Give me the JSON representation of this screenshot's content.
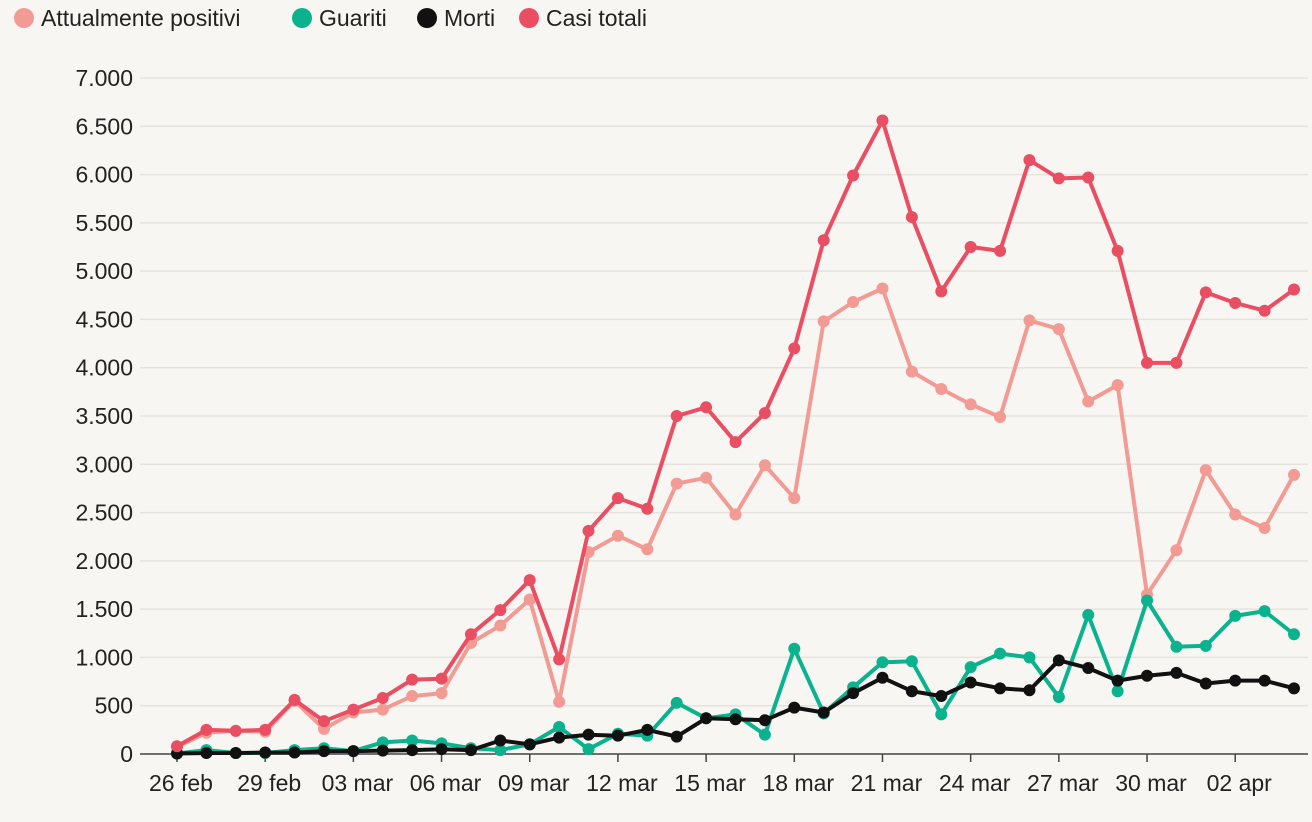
{
  "chart_data": {
    "type": "line",
    "title": "",
    "xlabel": "",
    "ylabel": "",
    "ylim": [
      0,
      7000
    ],
    "yticks": [
      0,
      500,
      1000,
      1500,
      2000,
      2500,
      3000,
      3500,
      4000,
      4500,
      5000,
      5500,
      6000,
      6500,
      7000
    ],
    "ytick_labels": [
      "0",
      "500",
      "1.000",
      "1.500",
      "2.000",
      "2.500",
      "3.000",
      "3.500",
      "4.000",
      "4.500",
      "5.000",
      "5.500",
      "6.000",
      "6.500",
      "7.000"
    ],
    "x": [
      "26 feb",
      "27 feb",
      "28 feb",
      "29 feb",
      "01 mar",
      "02 mar",
      "03 mar",
      "04 mar",
      "05 mar",
      "06 mar",
      "07 mar",
      "08 mar",
      "09 mar",
      "10 mar",
      "11 mar",
      "12 mar",
      "13 mar",
      "14 mar",
      "15 mar",
      "16 mar",
      "17 mar",
      "18 mar",
      "19 mar",
      "20 mar",
      "21 mar",
      "22 mar",
      "23 mar",
      "24 mar",
      "25 mar",
      "26 mar",
      "27 mar",
      "28 mar",
      "29 mar",
      "30 mar",
      "31 mar",
      "01 apr",
      "02 apr",
      "03 apr",
      "04 apr"
    ],
    "xtick_labels": [
      "26 feb",
      "29 feb",
      "03 mar",
      "06 mar",
      "09 mar",
      "12 mar",
      "15 mar",
      "18 mar",
      "21 mar",
      "24 mar",
      "27 mar",
      "30 mar",
      "02 apr"
    ],
    "xtick_every": 3,
    "grid": true,
    "legend_position": "top-left",
    "series": [
      {
        "name": "Attualmente positivi",
        "color": "#f29a94",
        "values": [
          75,
          220,
          240,
          230,
          550,
          260,
          430,
          460,
          600,
          630,
          1150,
          1330,
          1600,
          540,
          2090,
          2260,
          2120,
          2800,
          2860,
          2480,
          2990,
          2650,
          4480,
          4680,
          4820,
          3960,
          3780,
          3620,
          3490,
          4490,
          4400,
          3650,
          3820,
          1650,
          2110,
          2940,
          2480,
          2340,
          2890
        ]
      },
      {
        "name": "Guariti",
        "color": "#0ab38e",
        "values": [
          5,
          40,
          10,
          10,
          40,
          60,
          30,
          120,
          140,
          110,
          60,
          40,
          100,
          280,
          50,
          210,
          190,
          530,
          370,
          410,
          200,
          1090,
          420,
          690,
          950,
          960,
          410,
          900,
          1040,
          1000,
          590,
          1440,
          650,
          1590,
          1110,
          1120,
          1430,
          1480,
          1240
        ]
      },
      {
        "name": "Morti",
        "color": "#111111",
        "values": [
          5,
          10,
          10,
          15,
          15,
          30,
          30,
          35,
          40,
          50,
          40,
          140,
          100,
          170,
          200,
          190,
          250,
          180,
          370,
          360,
          350,
          480,
          430,
          630,
          790,
          650,
          600,
          740,
          680,
          660,
          970,
          890,
          760,
          810,
          840,
          730,
          760,
          760,
          680
        ]
      },
      {
        "name": "Casi totali",
        "color": "#e94e62",
        "values": [
          80,
          250,
          240,
          250,
          560,
          340,
          460,
          580,
          770,
          780,
          1240,
          1490,
          1800,
          980,
          2310,
          2650,
          2540,
          3500,
          3590,
          3230,
          3530,
          4200,
          5320,
          5990,
          6560,
          5560,
          4790,
          5250,
          5210,
          6150,
          5960,
          5970,
          5210,
          4050,
          4050,
          4780,
          4670,
          4590,
          4810
        ]
      }
    ]
  }
}
